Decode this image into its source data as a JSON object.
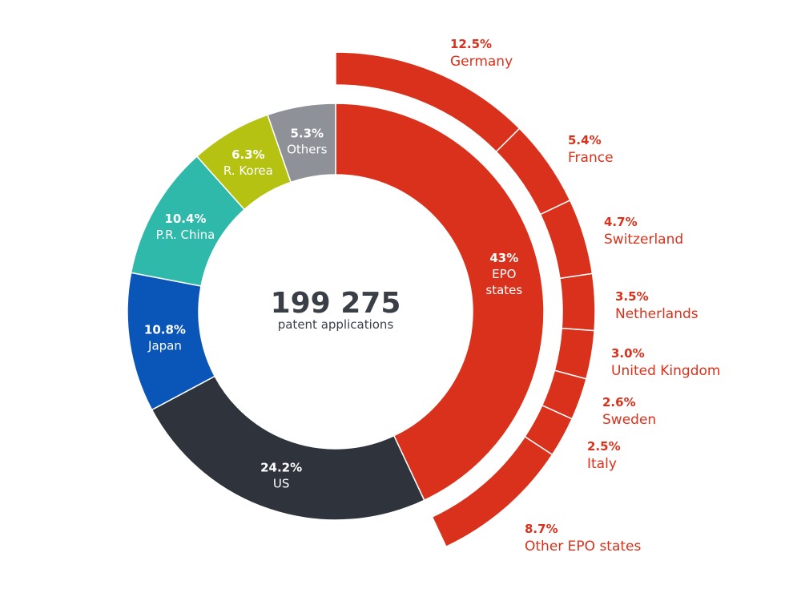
{
  "chart_data": {
    "type": "pie",
    "style": "nested-donut",
    "center": {
      "value": "199 275",
      "label": "patent applications"
    },
    "inner_ring": {
      "series": [
        {
          "name": "EPO states",
          "value": 43.0,
          "pct_label": "43%",
          "label_lines": [
            "EPO",
            "states"
          ],
          "color": "#d9311b"
        },
        {
          "name": "US",
          "value": 24.2,
          "pct_label": "24.2%",
          "label_lines": [
            "US"
          ],
          "color": "#2f333b"
        },
        {
          "name": "Japan",
          "value": 10.8,
          "pct_label": "10.8%",
          "label_lines": [
            "Japan"
          ],
          "color": "#0a55b8"
        },
        {
          "name": "P.R. China",
          "value": 10.4,
          "pct_label": "10.4%",
          "label_lines": [
            "P.R. China"
          ],
          "color": "#2fb9ab"
        },
        {
          "name": "R. Korea",
          "value": 6.3,
          "pct_label": "6.3%",
          "label_lines": [
            "R. Korea"
          ],
          "color": "#b6c212"
        },
        {
          "name": "Others",
          "value": 5.3,
          "pct_label": "5.3%",
          "label_lines": [
            "Others"
          ],
          "color": "#8f9199"
        }
      ]
    },
    "outer_ring": {
      "parent": "EPO states",
      "color": "#d9311b",
      "series": [
        {
          "name": "Germany",
          "value": 12.5,
          "pct_label": "12.5%"
        },
        {
          "name": "France",
          "value": 5.4,
          "pct_label": "5.4%"
        },
        {
          "name": "Switzerland",
          "value": 4.7,
          "pct_label": "4.7%"
        },
        {
          "name": "Netherlands",
          "value": 3.5,
          "pct_label": "3.5%"
        },
        {
          "name": "United Kingdom",
          "value": 3.0,
          "pct_label": "3.0%"
        },
        {
          "name": "Sweden",
          "value": 2.6,
          "pct_label": "2.6%"
        },
        {
          "name": "Italy",
          "value": 2.5,
          "pct_label": "2.5%"
        },
        {
          "name": "Other EPO states",
          "value": 8.7,
          "pct_label": "8.7%"
        }
      ]
    }
  }
}
